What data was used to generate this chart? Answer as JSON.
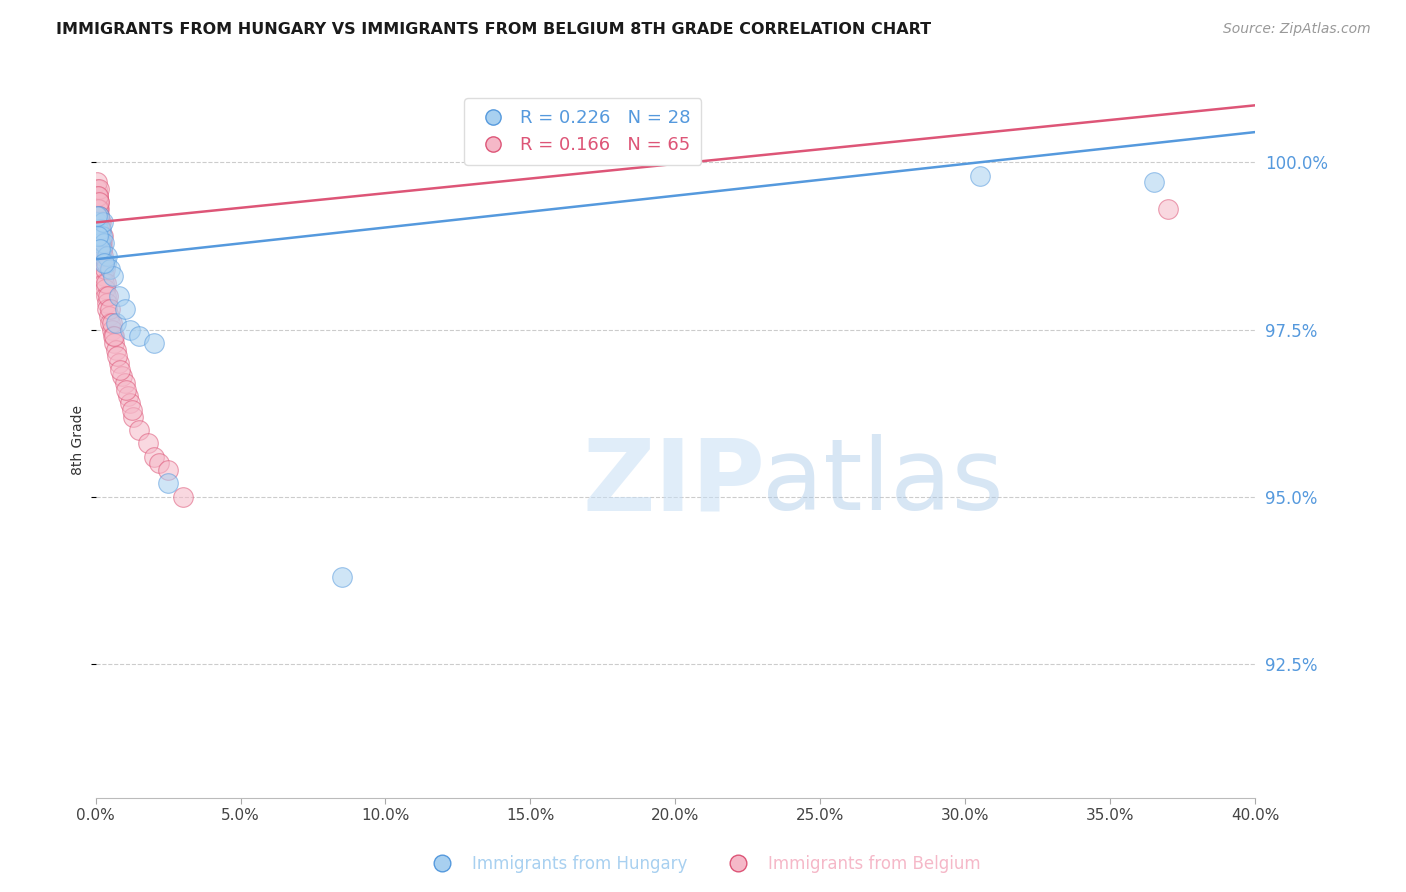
{
  "title": "IMMIGRANTS FROM HUNGARY VS IMMIGRANTS FROM BELGIUM 8TH GRADE CORRELATION CHART",
  "source": "Source: ZipAtlas.com",
  "ylabel": "8th Grade",
  "xlim": [
    0.0,
    40.0
  ],
  "ylim": [
    90.5,
    101.2
  ],
  "yticks": [
    92.5,
    95.0,
    97.5,
    100.0
  ],
  "xticks": [
    0.0,
    5.0,
    10.0,
    15.0,
    20.0,
    25.0,
    30.0,
    35.0,
    40.0
  ],
  "hungary_R": 0.226,
  "hungary_N": 28,
  "belgium_R": 0.166,
  "belgium_N": 65,
  "hungary_color": "#A8D0F0",
  "belgium_color": "#F5B8C8",
  "hungary_line_color": "#5599DD",
  "belgium_line_color": "#DD5577",
  "hungary_x": [
    0.05,
    0.08,
    0.1,
    0.12,
    0.15,
    0.18,
    0.2,
    0.22,
    0.25,
    0.3,
    0.35,
    0.4,
    0.5,
    0.6,
    0.7,
    0.8,
    1.0,
    1.2,
    1.5,
    2.0,
    2.5,
    0.06,
    0.09,
    0.14,
    0.28,
    30.5,
    36.5,
    8.5
  ],
  "hungary_y": [
    99.1,
    99.0,
    99.2,
    98.9,
    98.8,
    99.0,
    98.7,
    98.9,
    99.1,
    98.8,
    98.5,
    98.6,
    98.4,
    98.3,
    97.6,
    98.0,
    97.8,
    97.5,
    97.4,
    97.3,
    95.2,
    99.2,
    98.9,
    98.7,
    98.5,
    99.8,
    99.7,
    93.8
  ],
  "belgium_x": [
    0.04,
    0.05,
    0.06,
    0.07,
    0.08,
    0.09,
    0.1,
    0.11,
    0.12,
    0.13,
    0.14,
    0.15,
    0.16,
    0.17,
    0.18,
    0.19,
    0.2,
    0.21,
    0.22,
    0.23,
    0.25,
    0.28,
    0.3,
    0.33,
    0.35,
    0.38,
    0.4,
    0.45,
    0.5,
    0.55,
    0.6,
    0.65,
    0.7,
    0.8,
    0.9,
    1.0,
    1.1,
    1.2,
    1.3,
    1.5,
    1.8,
    2.0,
    2.2,
    2.5,
    0.07,
    0.09,
    0.11,
    0.13,
    0.16,
    0.19,
    0.21,
    0.24,
    0.27,
    0.32,
    0.36,
    0.42,
    0.48,
    0.55,
    0.62,
    0.72,
    0.85,
    1.05,
    1.25,
    3.0,
    37.0
  ],
  "belgium_y": [
    99.6,
    99.5,
    99.7,
    99.4,
    99.3,
    99.5,
    99.4,
    99.2,
    99.6,
    99.3,
    99.1,
    99.0,
    98.9,
    99.1,
    98.8,
    98.7,
    98.6,
    98.8,
    98.5,
    98.7,
    98.4,
    98.3,
    98.2,
    98.1,
    98.0,
    97.9,
    97.8,
    97.7,
    97.6,
    97.5,
    97.4,
    97.3,
    97.2,
    97.0,
    96.8,
    96.7,
    96.5,
    96.4,
    96.2,
    96.0,
    95.8,
    95.6,
    95.5,
    95.4,
    99.5,
    99.3,
    99.4,
    99.2,
    99.0,
    98.8,
    98.7,
    98.9,
    98.6,
    98.4,
    98.2,
    98.0,
    97.8,
    97.6,
    97.4,
    97.1,
    96.9,
    96.6,
    96.3,
    95.0,
    99.3
  ]
}
